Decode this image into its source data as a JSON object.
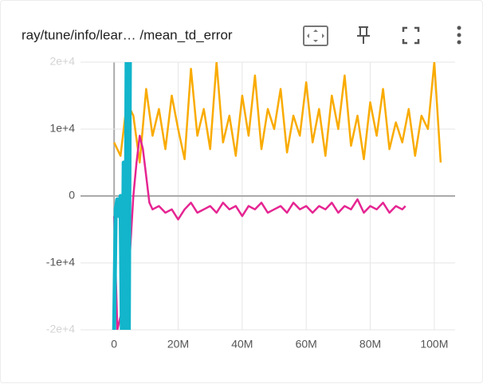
{
  "chart_data": {
    "type": "line",
    "title": "ray/tune/info/lear… /mean_td_error",
    "xlim": [
      -10500000,
      106500000
    ],
    "xticks": [
      0,
      {
        "value": 20000000,
        "label": "20M"
      },
      {
        "value": 40000000,
        "label": "40M"
      },
      {
        "value": 60000000,
        "label": "60M"
      },
      {
        "value": 80000000,
        "label": "80M"
      },
      {
        "value": 100000000,
        "label": "100M"
      }
    ],
    "ylim": [
      -20000,
      20000
    ],
    "yticks": [
      {
        "value": -20000,
        "label": "-2e+4"
      },
      {
        "value": -10000,
        "label": "-1e+4"
      },
      0,
      {
        "value": 10000,
        "label": "1e+4"
      },
      {
        "value": 20000,
        "label": "2e+4"
      }
    ],
    "grid": true,
    "series": [
      {
        "color": "#f9ab00",
        "x": [
          0,
          2000000,
          4000000,
          6000000,
          8000000,
          10000000,
          12000000,
          14000000,
          16000000,
          18000000,
          20000000,
          22000000,
          24000000,
          26000000,
          28000000,
          30000000,
          32000000,
          34000000,
          36000000,
          38000000,
          40000000,
          42000000,
          44000000,
          46000000,
          48000000,
          50000000,
          52000000,
          54000000,
          56000000,
          58000000,
          60000000,
          62000000,
          64000000,
          66000000,
          68000000,
          70000000,
          72000000,
          74000000,
          76000000,
          78000000,
          80000000,
          82000000,
          84000000,
          86000000,
          88000000,
          90000000,
          92000000,
          94000000,
          96000000,
          98000000,
          100000000,
          102000000
        ],
        "values": [
          8000,
          6000,
          14000,
          12000,
          5000,
          16000,
          9000,
          13000,
          7000,
          15000,
          10000,
          5500,
          19000,
          9000,
          13000,
          7000,
          20000,
          8000,
          12000,
          6000,
          15000,
          9000,
          18000,
          7000,
          13000,
          10000,
          16000,
          6500,
          12000,
          9000,
          17000,
          8000,
          13000,
          6000,
          15000,
          10000,
          18000,
          7500,
          12000,
          5500,
          14000,
          9000,
          16000,
          7000,
          11000,
          8000,
          13000,
          6000,
          12000,
          10000,
          20000,
          5000
        ]
      },
      {
        "color": "#e52592",
        "x": [
          0,
          1000000,
          2000000,
          3000000,
          4000000,
          5000000,
          6000000,
          7000000,
          8000000,
          9000000,
          10000000,
          11000000,
          12000000,
          14000000,
          16000000,
          18000000,
          20000000,
          22000000,
          24000000,
          26000000,
          28000000,
          30000000,
          32000000,
          34000000,
          36000000,
          38000000,
          40000000,
          42000000,
          44000000,
          46000000,
          48000000,
          50000000,
          52000000,
          54000000,
          56000000,
          58000000,
          60000000,
          62000000,
          64000000,
          66000000,
          68000000,
          70000000,
          72000000,
          74000000,
          76000000,
          78000000,
          80000000,
          82000000,
          84000000,
          86000000,
          88000000,
          90000000,
          91000000
        ],
        "values": [
          -3000,
          -20000,
          -18000,
          -20000,
          -12000,
          -8000,
          0,
          5000,
          9000,
          7000,
          3000,
          -1000,
          -2000,
          -1500,
          -2500,
          -2000,
          -3500,
          -2000,
          -1000,
          -2500,
          -2000,
          -1500,
          -2500,
          -1000,
          -2000,
          -1500,
          -3000,
          -1500,
          -2000,
          -1000,
          -2500,
          -2000,
          -1500,
          -2500,
          -1000,
          -2000,
          -1500,
          -2500,
          -1500,
          -2000,
          -1000,
          -2500,
          -1500,
          -2000,
          -500,
          -2500,
          -1500,
          -2000,
          -1000,
          -2500,
          -1500,
          -2000,
          -1500
        ]
      },
      {
        "color": "#12b5cb",
        "x": [
          0,
          500000,
          1000000,
          1500000,
          2000000,
          2500000,
          3000000,
          3500000,
          4000000,
          4500000,
          5000000
        ],
        "values": [
          -20000,
          -2000,
          -500,
          -3000,
          0,
          -25000,
          5000,
          -22000,
          30000,
          -30000,
          30000
        ]
      }
    ]
  }
}
